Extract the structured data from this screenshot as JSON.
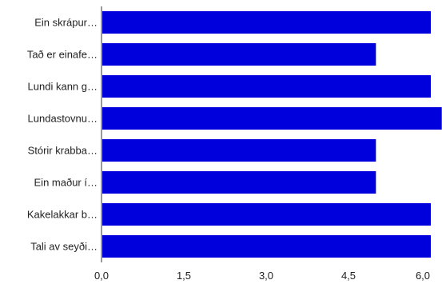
{
  "chart_data": {
    "type": "bar",
    "orientation": "horizontal",
    "categories": [
      "Ein skrápur…",
      "Tað er einafe…",
      "Lundi kann g…",
      "Lundastovnu…",
      "Stórir krabba…",
      "Ein maður í…",
      "Kakelakkar b…",
      "Tali av seyði…"
    ],
    "values": [
      6,
      5,
      6,
      6.2,
      5,
      5,
      6,
      6
    ],
    "xlim": [
      0,
      6
    ],
    "xticks": [
      "0,0",
      "1,5",
      "3,0",
      "4,5",
      "6,0"
    ],
    "xtick_values": [
      0,
      1.5,
      3,
      4.5,
      6
    ],
    "bar_color": "#0000dd",
    "grid": false,
    "title": "",
    "xlabel": "",
    "ylabel": ""
  }
}
